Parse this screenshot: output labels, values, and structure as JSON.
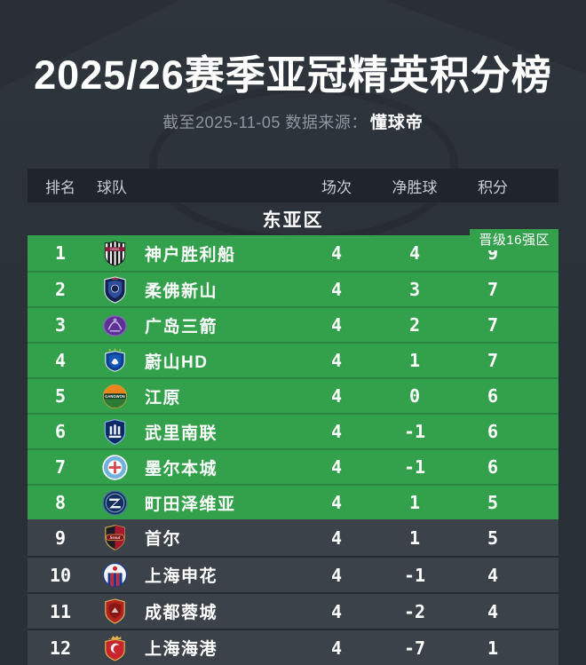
{
  "header": {
    "title": "2025/26赛季亚冠精英积分榜",
    "as_of": "截至2025-11-05 数据来源：",
    "source": "懂球帝"
  },
  "table": {
    "headers": {
      "rank": "排名",
      "team": "球队",
      "played": "场次",
      "gd": "净胜球",
      "points": "积分"
    },
    "section_label": "东亚区",
    "qualification_label": "晋级16强区"
  },
  "standings": [
    {
      "rank": "1",
      "team": "神户胜利船",
      "played": "4",
      "gd": "4",
      "points": "9",
      "zone": "qualified",
      "logo": "vissel-kobe-crest"
    },
    {
      "rank": "2",
      "team": "柔佛新山",
      "played": "4",
      "gd": "3",
      "points": "7",
      "zone": "qualified",
      "logo": "johor-darul-tazim-crest"
    },
    {
      "rank": "3",
      "team": "广岛三箭",
      "played": "4",
      "gd": "2",
      "points": "7",
      "zone": "qualified",
      "logo": "sanfrecce-hiroshima-crest"
    },
    {
      "rank": "4",
      "team": "蔚山HD",
      "played": "4",
      "gd": "1",
      "points": "7",
      "zone": "qualified",
      "logo": "ulsan-hd-crest"
    },
    {
      "rank": "5",
      "team": "江原",
      "played": "4",
      "gd": "0",
      "points": "6",
      "zone": "qualified",
      "logo": "gangwon-fc-crest"
    },
    {
      "rank": "6",
      "team": "武里南联",
      "played": "4",
      "gd": "-1",
      "points": "6",
      "zone": "qualified",
      "logo": "buriram-united-crest"
    },
    {
      "rank": "7",
      "team": "墨尔本城",
      "played": "4",
      "gd": "-1",
      "points": "6",
      "zone": "qualified",
      "logo": "melbourne-city-crest"
    },
    {
      "rank": "8",
      "team": "町田泽维亚",
      "played": "4",
      "gd": "1",
      "points": "5",
      "zone": "qualified",
      "logo": "machida-zelvia-crest"
    },
    {
      "rank": "9",
      "team": "首尔",
      "played": "4",
      "gd": "1",
      "points": "5",
      "zone": "normal",
      "logo": "fc-seoul-crest"
    },
    {
      "rank": "10",
      "team": "上海申花",
      "played": "4",
      "gd": "-1",
      "points": "4",
      "zone": "normal",
      "logo": "shanghai-shenhua-crest"
    },
    {
      "rank": "11",
      "team": "成都蓉城",
      "played": "4",
      "gd": "-2",
      "points": "4",
      "zone": "normal",
      "logo": "chengdu-rongcheng-crest"
    },
    {
      "rank": "12",
      "team": "上海海港",
      "played": "4",
      "gd": "-7",
      "points": "1",
      "zone": "normal",
      "logo": "shanghai-port-crest"
    }
  ],
  "chart_data": {
    "type": "table",
    "title": "2025/26赛季亚冠精英积分榜",
    "as_of": "2025-11-05",
    "source": "懂球帝",
    "section": "东亚区",
    "columns": [
      "排名",
      "球队",
      "场次",
      "净胜球",
      "积分"
    ],
    "qualification_zone": {
      "label": "晋级16强区",
      "applies_to_ranks": [
        1,
        2,
        3,
        4,
        5,
        6,
        7,
        8
      ]
    },
    "rows": [
      [
        1,
        "神户胜利船",
        4,
        4,
        9
      ],
      [
        2,
        "柔佛新山",
        4,
        3,
        7
      ],
      [
        3,
        "广岛三箭",
        4,
        2,
        7
      ],
      [
        4,
        "蔚山HD",
        4,
        1,
        7
      ],
      [
        5,
        "江原",
        4,
        0,
        6
      ],
      [
        6,
        "武里南联",
        4,
        -1,
        6
      ],
      [
        7,
        "墨尔本城",
        4,
        -1,
        6
      ],
      [
        8,
        "町田泽维亚",
        4,
        1,
        5
      ],
      [
        9,
        "首尔",
        4,
        1,
        5
      ],
      [
        10,
        "上海申花",
        4,
        -1,
        4
      ],
      [
        11,
        "成都蓉城",
        4,
        -2,
        4
      ],
      [
        12,
        "上海海港",
        4,
        -7,
        1
      ]
    ]
  },
  "colors": {
    "background": "#2b3138",
    "header_bar": "#1f252b",
    "qualified_green": "#33a04b",
    "row_dark": "#3b424a",
    "title_text": "#ffffff",
    "muted_text": "#8f969e"
  }
}
